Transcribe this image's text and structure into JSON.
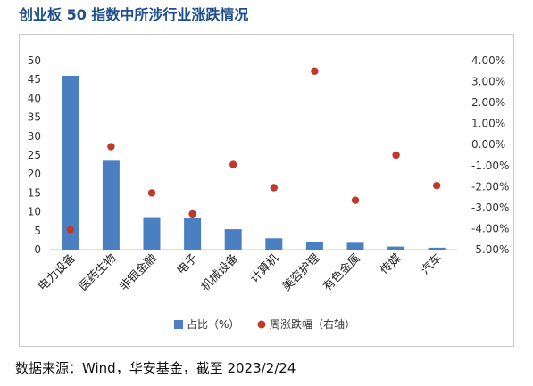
{
  "title": "创业板 50 指数中所涉行业涨跌情况",
  "source": "数据来源：Wind，华安基金，截至 2023/2/24",
  "chart_data": {
    "type": "bar",
    "categories": [
      "电力设备",
      "医药生物",
      "非银金融",
      "电子",
      "机械设备",
      "计算机",
      "美容护理",
      "有色金属",
      "传媒",
      "汽车"
    ],
    "series": [
      {
        "name": "占比（%）",
        "type": "bar",
        "axis": "left",
        "color": "#4a7fc1",
        "values": [
          46.0,
          23.5,
          8.6,
          8.4,
          5.4,
          3.0,
          2.1,
          1.8,
          0.8,
          0.5
        ]
      },
      {
        "name": "周涨跌幅（右轴）",
        "type": "scatter",
        "axis": "right",
        "color": "#c0392b",
        "values": [
          -4.05,
          -0.1,
          -2.3,
          -3.3,
          -0.95,
          -2.05,
          3.5,
          -2.65,
          -0.5,
          -1.95
        ]
      }
    ],
    "left_axis": {
      "ylim": [
        0,
        50
      ],
      "ticks": [
        "0",
        "5",
        "10",
        "15",
        "20",
        "25",
        "30",
        "35",
        "40",
        "45",
        "50"
      ]
    },
    "right_axis": {
      "ylim": [
        -5,
        4
      ],
      "ticks": [
        "-5.00%",
        "-4.00%",
        "-3.00%",
        "-2.00%",
        "-1.00%",
        "0.00%",
        "1.00%",
        "2.00%",
        "3.00%",
        "4.00%"
      ]
    },
    "legend": "bottom",
    "grid": false
  }
}
